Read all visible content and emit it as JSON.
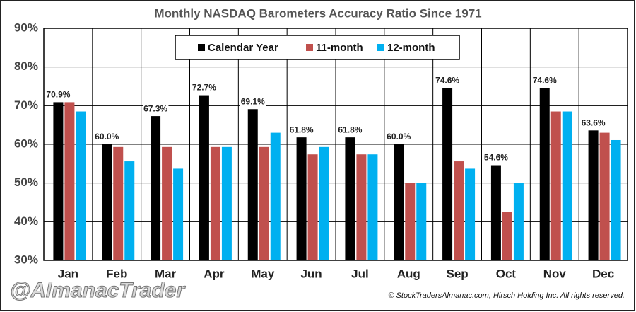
{
  "chart_data": {
    "type": "bar",
    "title": "Monthly NASDAQ Barometers Accuracy Ratio Since 1971",
    "watermark": "@AlmanacTrader",
    "source": "© StockTradersAlmanac.com, Hirsch Holding Inc. All rights reserved.",
    "categories": [
      "Jan",
      "Feb",
      "Mar",
      "Apr",
      "May",
      "Jun",
      "Jul",
      "Aug",
      "Sep",
      "Oct",
      "Nov",
      "Dec"
    ],
    "series": [
      {
        "name": "Calendar Year",
        "color": "#000000",
        "values": [
          70.9,
          60.0,
          67.3,
          72.7,
          69.1,
          61.8,
          61.8,
          60.0,
          74.6,
          54.6,
          74.6,
          63.6
        ],
        "value_labels": [
          "70.9%",
          "60.0%",
          "67.3%",
          "72.7%",
          "69.1%",
          "61.8%",
          "61.8%",
          "60.0%",
          "74.6%",
          "54.6%",
          "74.6%",
          "63.6%"
        ]
      },
      {
        "name": "11-month",
        "color": "#c0504d",
        "values": [
          70.9,
          59.3,
          59.3,
          59.3,
          59.3,
          57.4,
          57.4,
          50.0,
          55.6,
          42.6,
          68.5,
          63.0
        ]
      },
      {
        "name": "12-month",
        "color": "#00b0f0",
        "values": [
          68.5,
          55.6,
          53.7,
          59.3,
          63.0,
          59.3,
          57.4,
          50.0,
          53.7,
          50.0,
          68.5,
          61.1
        ]
      }
    ],
    "ylim": [
      30,
      90
    ],
    "yticks": [
      {
        "value": 30,
        "label": "30%"
      },
      {
        "value": 40,
        "label": "40%"
      },
      {
        "value": 50,
        "label": "50%"
      },
      {
        "value": 60,
        "label": "60%"
      },
      {
        "value": 70,
        "label": "70%"
      },
      {
        "value": 80,
        "label": "80%"
      },
      {
        "value": 90,
        "label": "90%"
      }
    ],
    "grid": true,
    "legend": "top"
  }
}
